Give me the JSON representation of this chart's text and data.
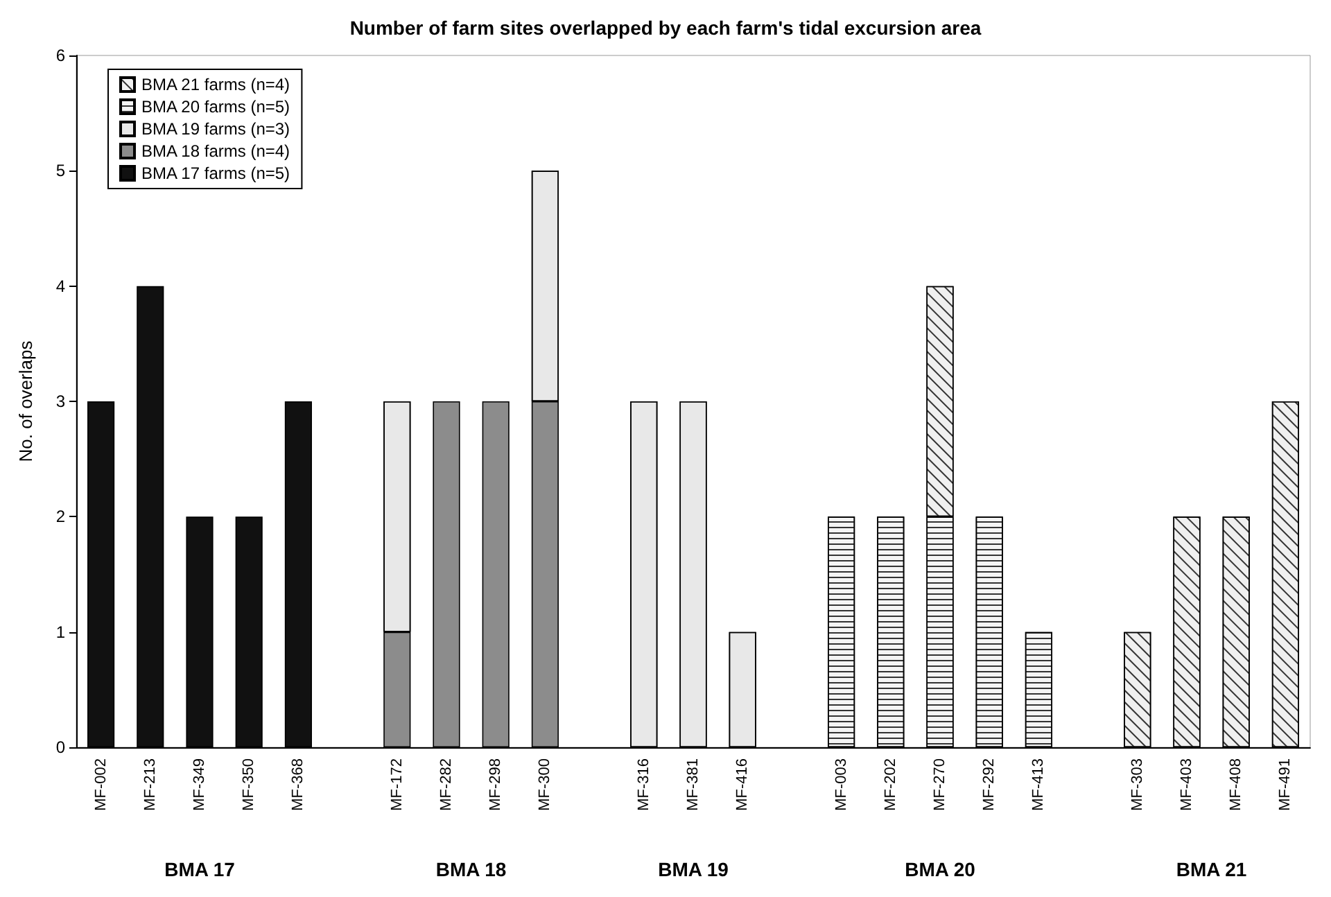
{
  "chart_data": {
    "type": "bar",
    "stacked": true,
    "title": "Number of farm sites overlapped by each farm's tidal excursion area",
    "ylabel": "No. of overlaps",
    "categories": [
      "MF-002",
      "MF-213",
      "MF-349",
      "MF-350",
      "MF-368",
      null,
      "MF-172",
      "MF-282",
      "MF-298",
      "MF-300",
      null,
      "MF-316",
      "MF-381",
      "MF-416",
      null,
      "MF-003",
      "MF-202",
      "MF-270",
      "MF-292",
      "MF-413",
      null,
      "MF-303",
      "MF-403",
      "MF-408",
      "MF-491"
    ],
    "series": [
      {
        "name": "BMA 17 farms (n=5)",
        "color": "#111111",
        "values": [
          3,
          4,
          2,
          2,
          3,
          null,
          null,
          null,
          null,
          null,
          null,
          null,
          null,
          null,
          null,
          null,
          null,
          null,
          null,
          null,
          null,
          null,
          null,
          null,
          null
        ]
      },
      {
        "name": "BMA 18 farms (n=4)",
        "color": "#8c8c8c",
        "values": [
          null,
          null,
          null,
          null,
          null,
          null,
          1,
          3,
          3,
          3,
          null,
          null,
          null,
          null,
          null,
          null,
          null,
          null,
          null,
          null,
          null,
          null,
          null,
          null,
          null
        ]
      },
      {
        "name": "BMA 19 farms (n=3)",
        "color": "#e8e8e8",
        "values": [
          null,
          null,
          null,
          null,
          null,
          null,
          2,
          null,
          null,
          2,
          null,
          3,
          3,
          1,
          null,
          null,
          null,
          null,
          null,
          null,
          null,
          null,
          null,
          null,
          null
        ]
      },
      {
        "name": "BMA 20 farms (n=5)",
        "color": "#f4f4f4",
        "values": [
          null,
          null,
          null,
          null,
          null,
          null,
          null,
          null,
          null,
          null,
          null,
          null,
          null,
          null,
          null,
          2,
          2,
          2,
          2,
          1,
          null,
          null,
          null,
          null,
          null
        ]
      },
      {
        "name": "BMA 21 farms (n=4)",
        "color": "#f0f0f0",
        "values": [
          null,
          null,
          null,
          null,
          null,
          null,
          null,
          null,
          null,
          null,
          null,
          null,
          null,
          null,
          null,
          null,
          null,
          2,
          null,
          null,
          null,
          1,
          2,
          2,
          3
        ]
      }
    ],
    "annotations": [
      "BMA 17",
      "BMA 18",
      "BMA 19",
      "BMA 20",
      "BMA 21"
    ],
    "ylim": [
      0,
      6
    ],
    "yticks": [
      0,
      1,
      2,
      3,
      4,
      5,
      6
    ],
    "legend": "top left"
  }
}
